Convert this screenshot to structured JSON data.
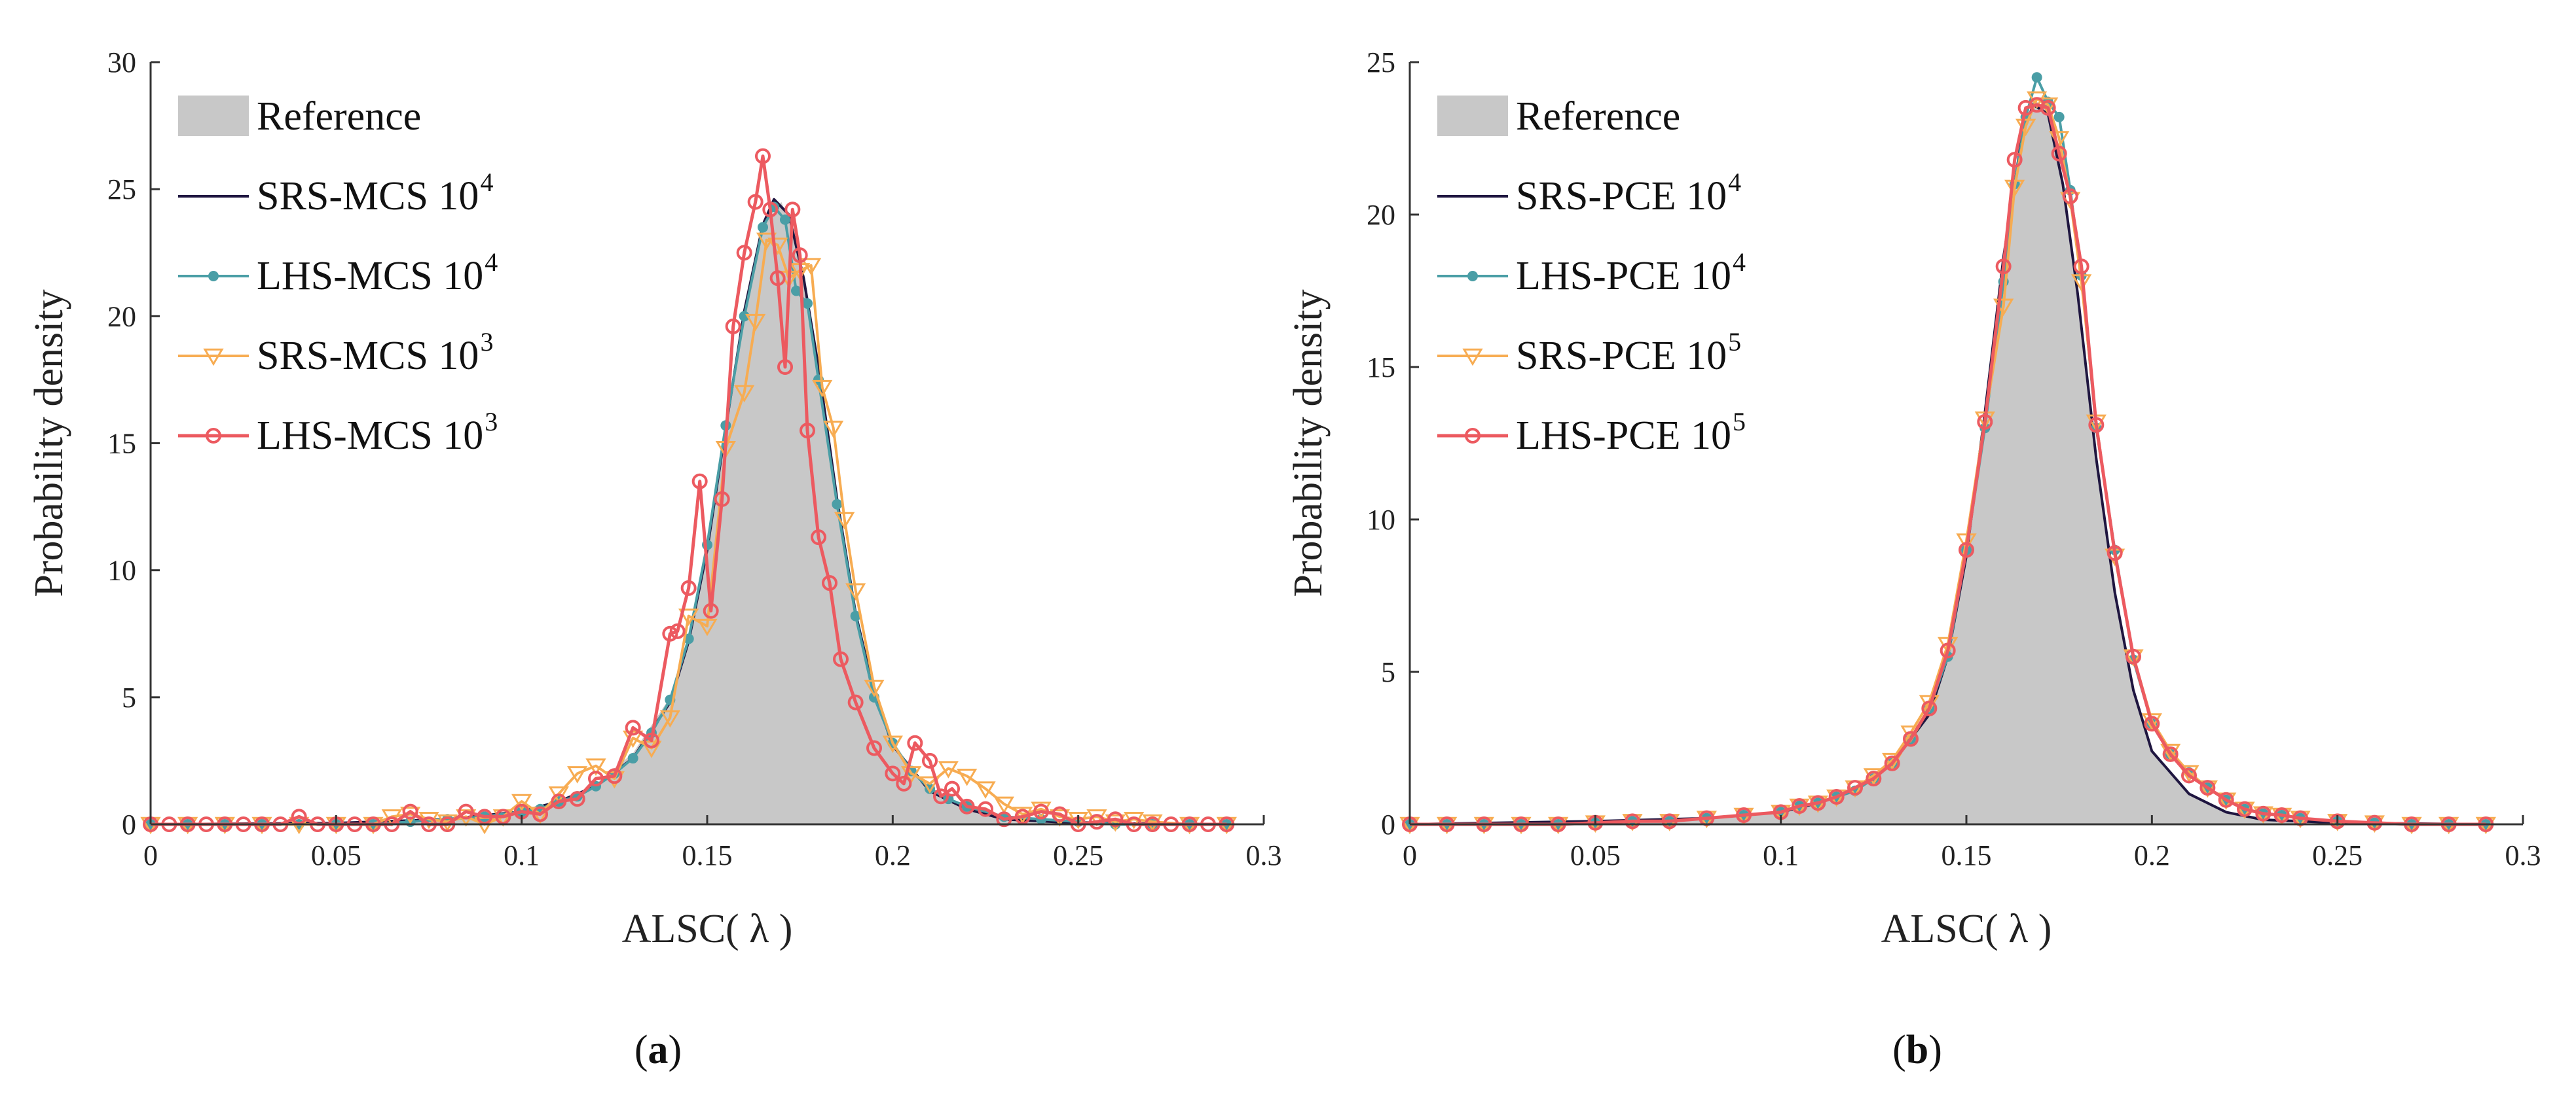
{
  "colors": {
    "reference": "#c8c8c8",
    "srs_1e4": "#1f1640",
    "lhs_1e4": "#4a9ea6",
    "srs_1e3": "#f7ac52",
    "lhs_1e3": "#ec5a60"
  },
  "chart_data": [
    {
      "type": "line",
      "panel": "a",
      "caption_letter": "a",
      "xlabel": "ALSC( λ )",
      "ylabel": "Probability density",
      "xlim": [
        0,
        0.3
      ],
      "ylim": [
        0,
        30
      ],
      "xticks": [
        "0",
        "0.05",
        "0.1",
        "0.15",
        "0.2",
        "0.25",
        "0.3"
      ],
      "yticks": [
        "0",
        "5",
        "10",
        "15",
        "20",
        "25",
        "30"
      ],
      "legend_position": "top-left",
      "legend": [
        {
          "key": "reference",
          "base": "Reference",
          "exp": ""
        },
        {
          "key": "srs_1e4",
          "base": "SRS-MCS 10",
          "exp": "4"
        },
        {
          "key": "lhs_1e4",
          "base": "LHS-MCS 10",
          "exp": "4"
        },
        {
          "key": "srs_1e3",
          "base": "SRS-MCS 10",
          "exp": "3"
        },
        {
          "key": "lhs_1e3",
          "base": "LHS-MCS 10",
          "exp": "3"
        }
      ],
      "reference": {
        "x": [
          0,
          0.05,
          0.08,
          0.1,
          0.11,
          0.12,
          0.13,
          0.14,
          0.145,
          0.15,
          0.155,
          0.16,
          0.165,
          0.17,
          0.175,
          0.18,
          0.185,
          0.19,
          0.195,
          0.2,
          0.21,
          0.22,
          0.23,
          0.25,
          0.29
        ],
        "y": [
          0,
          0.05,
          0.15,
          0.45,
          0.9,
          1.6,
          2.8,
          5.0,
          7.5,
          11.0,
          15.5,
          20.0,
          23.5,
          24.5,
          22.5,
          18.0,
          12.5,
          8.0,
          5.0,
          3.0,
          1.3,
          0.6,
          0.2,
          0.05,
          0
        ]
      },
      "series": [
        {
          "key": "srs_1e4",
          "name": "SRS-MCS 10^4",
          "marker": "none",
          "x": [
            0,
            0.05,
            0.08,
            0.1,
            0.11,
            0.12,
            0.13,
            0.14,
            0.145,
            0.15,
            0.155,
            0.16,
            0.165,
            0.168,
            0.172,
            0.176,
            0.18,
            0.185,
            0.19,
            0.195,
            0.2,
            0.21,
            0.22,
            0.23,
            0.25,
            0.29
          ],
          "y": [
            0,
            0.05,
            0.2,
            0.5,
            0.9,
            1.5,
            2.6,
            4.8,
            7.2,
            10.8,
            15.6,
            20.2,
            23.6,
            24.6,
            24.0,
            21.5,
            18.0,
            12.8,
            8.3,
            5.2,
            3.1,
            1.3,
            0.6,
            0.2,
            0.05,
            0
          ]
        },
        {
          "key": "lhs_1e4",
          "name": "LHS-MCS 10^4",
          "marker": "dot",
          "x": [
            0,
            0.01,
            0.02,
            0.03,
            0.04,
            0.05,
            0.06,
            0.07,
            0.08,
            0.09,
            0.1,
            0.105,
            0.11,
            0.115,
            0.12,
            0.125,
            0.13,
            0.135,
            0.14,
            0.145,
            0.15,
            0.155,
            0.16,
            0.165,
            0.168,
            0.171,
            0.174,
            0.177,
            0.18,
            0.185,
            0.19,
            0.195,
            0.2,
            0.205,
            0.21,
            0.215,
            0.22,
            0.23,
            0.24,
            0.25,
            0.26,
            0.27,
            0.28,
            0.29
          ],
          "y": [
            0,
            0,
            0,
            0,
            0,
            0,
            0,
            0.1,
            0.2,
            0.3,
            0.5,
            0.6,
            0.9,
            1.1,
            1.5,
            2.0,
            2.6,
            3.6,
            4.9,
            7.3,
            11.0,
            15.7,
            20.0,
            23.5,
            24.3,
            23.8,
            21.0,
            20.5,
            17.5,
            12.6,
            8.2,
            5.0,
            3.2,
            2.1,
            1.4,
            1.0,
            0.7,
            0.3,
            0.2,
            0.1,
            0,
            0,
            0,
            0
          ]
        },
        {
          "key": "srs_1e3",
          "name": "SRS-MCS 10^3",
          "marker": "triangle",
          "x": [
            0,
            0.01,
            0.02,
            0.03,
            0.04,
            0.05,
            0.06,
            0.065,
            0.07,
            0.075,
            0.08,
            0.085,
            0.09,
            0.095,
            0.1,
            0.105,
            0.11,
            0.115,
            0.12,
            0.125,
            0.13,
            0.135,
            0.14,
            0.145,
            0.15,
            0.155,
            0.16,
            0.163,
            0.166,
            0.169,
            0.172,
            0.175,
            0.178,
            0.181,
            0.184,
            0.187,
            0.19,
            0.195,
            0.2,
            0.205,
            0.21,
            0.215,
            0.22,
            0.225,
            0.23,
            0.235,
            0.24,
            0.245,
            0.25,
            0.255,
            0.26,
            0.265,
            0.27,
            0.28,
            0.29
          ],
          "y": [
            0,
            0,
            0,
            0,
            0,
            0,
            0,
            0.3,
            0.4,
            0.2,
            0.1,
            0.3,
            0,
            0.3,
            0.9,
            0.4,
            1.2,
            2.0,
            2.3,
            1.8,
            3.4,
            3.0,
            4.2,
            8.2,
            7.8,
            14.8,
            17.0,
            19.8,
            23.0,
            22.8,
            21.5,
            21.8,
            22.0,
            17.2,
            15.6,
            12.0,
            9.2,
            5.4,
            3.2,
            2.0,
            1.6,
            2.2,
            1.9,
            1.4,
            0.8,
            0.4,
            0.6,
            0.3,
            0.2,
            0.3,
            0.1,
            0.2,
            0.1,
            0,
            0
          ]
        },
        {
          "key": "lhs_1e3",
          "name": "LHS-MCS 10^3",
          "marker": "ring",
          "x": [
            0,
            0.005,
            0.01,
            0.015,
            0.02,
            0.025,
            0.03,
            0.035,
            0.04,
            0.045,
            0.05,
            0.055,
            0.06,
            0.065,
            0.07,
            0.075,
            0.08,
            0.085,
            0.09,
            0.095,
            0.1,
            0.105,
            0.11,
            0.115,
            0.12,
            0.125,
            0.13,
            0.135,
            0.14,
            0.142,
            0.145,
            0.148,
            0.151,
            0.154,
            0.157,
            0.16,
            0.163,
            0.165,
            0.167,
            0.169,
            0.171,
            0.173,
            0.175,
            0.177,
            0.18,
            0.183,
            0.186,
            0.19,
            0.195,
            0.2,
            0.203,
            0.206,
            0.21,
            0.213,
            0.216,
            0.22,
            0.225,
            0.23,
            0.235,
            0.24,
            0.245,
            0.25,
            0.255,
            0.26,
            0.265,
            0.27,
            0.275,
            0.28,
            0.285,
            0.29
          ],
          "y": [
            0,
            0,
            0,
            0,
            0,
            0,
            0,
            0,
            0.3,
            0,
            0,
            0,
            0,
            0,
            0.5,
            0,
            0,
            0.5,
            0.3,
            0.3,
            0.5,
            0.4,
            0.9,
            1.0,
            1.8,
            1.9,
            3.8,
            3.3,
            7.5,
            7.6,
            9.3,
            13.5,
            8.4,
            12.8,
            19.6,
            22.5,
            24.5,
            26.3,
            24.2,
            21.5,
            18.0,
            24.2,
            22.4,
            15.5,
            11.3,
            9.5,
            6.5,
            4.8,
            3.0,
            2.0,
            1.6,
            3.2,
            2.5,
            1.1,
            1.4,
            0.7,
            0.6,
            0.2,
            0.3,
            0.5,
            0.4,
            0,
            0.1,
            0.2,
            0,
            0,
            0,
            0,
            0,
            0
          ]
        }
      ]
    },
    {
      "type": "line",
      "panel": "b",
      "caption_letter": "b",
      "xlabel": "ALSC( λ )",
      "ylabel": "Probability density",
      "xlim": [
        0,
        0.3
      ],
      "ylim": [
        0,
        25
      ],
      "xticks": [
        "0",
        "0.05",
        "0.1",
        "0.15",
        "0.2",
        "0.25",
        "0.3"
      ],
      "yticks": [
        "0",
        "5",
        "10",
        "15",
        "20",
        "25"
      ],
      "legend_position": "top-left",
      "legend": [
        {
          "key": "reference",
          "base": "Reference",
          "exp": ""
        },
        {
          "key": "srs_1e4",
          "base": "SRS-PCE 10",
          "exp": "4"
        },
        {
          "key": "lhs_1e4",
          "base": "LHS-PCE 10",
          "exp": "4"
        },
        {
          "key": "srs_1e3",
          "base": "SRS-PCE 10",
          "exp": "5"
        },
        {
          "key": "lhs_1e3",
          "base": "LHS-PCE 10",
          "exp": "5"
        }
      ],
      "reference": {
        "x": [
          0,
          0.05,
          0.08,
          0.1,
          0.11,
          0.12,
          0.13,
          0.14,
          0.145,
          0.15,
          0.155,
          0.16,
          0.165,
          0.168,
          0.172,
          0.176,
          0.18,
          0.185,
          0.19,
          0.195,
          0.2,
          0.21,
          0.22,
          0.23,
          0.25,
          0.29
        ],
        "y": [
          0,
          0.1,
          0.2,
          0.4,
          0.7,
          1.1,
          2.0,
          3.6,
          5.5,
          8.8,
          13.5,
          18.5,
          22.5,
          23.8,
          23.4,
          21.0,
          17.5,
          12.0,
          7.5,
          4.3,
          2.4,
          1.0,
          0.4,
          0.15,
          0.05,
          0
        ]
      },
      "series": [
        {
          "key": "srs_1e4",
          "name": "SRS-PCE 10^4",
          "marker": "none",
          "x": [
            0,
            0.05,
            0.08,
            0.1,
            0.11,
            0.12,
            0.13,
            0.14,
            0.145,
            0.15,
            0.155,
            0.16,
            0.165,
            0.168,
            0.172,
            0.176,
            0.18,
            0.185,
            0.19,
            0.195,
            0.2,
            0.21,
            0.22,
            0.23,
            0.25,
            0.29
          ],
          "y": [
            0,
            0.1,
            0.2,
            0.4,
            0.7,
            1.1,
            2.0,
            3.6,
            5.5,
            8.8,
            13.5,
            18.6,
            22.6,
            23.6,
            23.3,
            21.0,
            17.4,
            12.0,
            7.6,
            4.4,
            2.4,
            1.0,
            0.4,
            0.15,
            0.05,
            0
          ]
        },
        {
          "key": "lhs_1e4",
          "name": "LHS-PCE 10^4",
          "marker": "dot",
          "x": [
            0,
            0.01,
            0.02,
            0.03,
            0.04,
            0.05,
            0.06,
            0.07,
            0.08,
            0.09,
            0.1,
            0.105,
            0.11,
            0.115,
            0.12,
            0.125,
            0.13,
            0.135,
            0.14,
            0.145,
            0.15,
            0.155,
            0.16,
            0.163,
            0.166,
            0.169,
            0.172,
            0.175,
            0.178,
            0.181,
            0.185,
            0.19,
            0.195,
            0.2,
            0.205,
            0.21,
            0.215,
            0.22,
            0.225,
            0.23,
            0.235,
            0.24,
            0.25,
            0.26,
            0.27,
            0.28,
            0.29
          ],
          "y": [
            0,
            0,
            0,
            0,
            0,
            0.05,
            0.1,
            0.1,
            0.2,
            0.3,
            0.4,
            0.6,
            0.7,
            0.9,
            1.1,
            1.5,
            2.0,
            2.8,
            3.8,
            5.5,
            9.0,
            13.0,
            17.8,
            21.0,
            23.2,
            24.5,
            23.7,
            23.2,
            20.8,
            18.0,
            13.0,
            9.0,
            5.4,
            3.3,
            2.3,
            1.7,
            1.2,
            0.8,
            0.5,
            0.35,
            0.3,
            0.2,
            0.1,
            0.05,
            0,
            0,
            0
          ]
        },
        {
          "key": "srs_1e3",
          "name": "SRS-PCE 10^5",
          "marker": "triangle",
          "x": [
            0,
            0.01,
            0.02,
            0.03,
            0.04,
            0.05,
            0.06,
            0.07,
            0.08,
            0.09,
            0.1,
            0.105,
            0.11,
            0.115,
            0.12,
            0.125,
            0.13,
            0.135,
            0.14,
            0.145,
            0.15,
            0.155,
            0.16,
            0.163,
            0.166,
            0.169,
            0.172,
            0.175,
            0.178,
            0.181,
            0.185,
            0.19,
            0.195,
            0.2,
            0.205,
            0.21,
            0.215,
            0.22,
            0.225,
            0.23,
            0.235,
            0.24,
            0.25,
            0.26,
            0.27,
            0.28,
            0.29
          ],
          "y": [
            0,
            0,
            0,
            0,
            0,
            0.05,
            0.1,
            0.1,
            0.2,
            0.3,
            0.4,
            0.6,
            0.7,
            0.9,
            1.2,
            1.6,
            2.1,
            3.0,
            4.0,
            5.9,
            9.3,
            13.3,
            17.0,
            20.9,
            22.9,
            23.8,
            23.6,
            22.5,
            20.5,
            17.8,
            13.2,
            8.8,
            5.5,
            3.4,
            2.4,
            1.7,
            1.2,
            0.8,
            0.5,
            0.35,
            0.3,
            0.2,
            0.1,
            0.05,
            0,
            0,
            0
          ]
        },
        {
          "key": "lhs_1e3",
          "name": "LHS-PCE 10^5",
          "marker": "ring",
          "x": [
            0,
            0.01,
            0.02,
            0.03,
            0.04,
            0.05,
            0.06,
            0.07,
            0.08,
            0.09,
            0.1,
            0.105,
            0.11,
            0.115,
            0.12,
            0.125,
            0.13,
            0.135,
            0.14,
            0.145,
            0.15,
            0.155,
            0.16,
            0.163,
            0.166,
            0.169,
            0.172,
            0.175,
            0.178,
            0.181,
            0.185,
            0.19,
            0.195,
            0.2,
            0.205,
            0.21,
            0.215,
            0.22,
            0.225,
            0.23,
            0.235,
            0.24,
            0.25,
            0.26,
            0.27,
            0.28,
            0.29
          ],
          "y": [
            0,
            0,
            0,
            0,
            0,
            0.05,
            0.1,
            0.1,
            0.2,
            0.3,
            0.4,
            0.6,
            0.7,
            0.9,
            1.2,
            1.5,
            2.0,
            2.8,
            3.8,
            5.7,
            9.0,
            13.2,
            18.3,
            21.8,
            23.5,
            23.6,
            23.5,
            22.0,
            20.6,
            18.3,
            13.1,
            8.9,
            5.5,
            3.3,
            2.3,
            1.6,
            1.2,
            0.8,
            0.5,
            0.35,
            0.3,
            0.2,
            0.1,
            0.05,
            0,
            0,
            0
          ]
        }
      ]
    }
  ]
}
